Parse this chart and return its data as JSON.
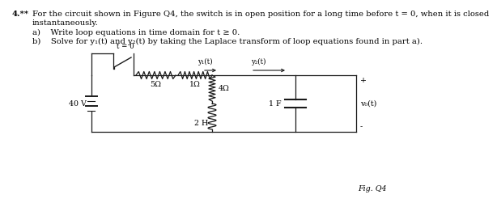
{
  "title_num": "4.**",
  "title_text": "For the circuit shown in Figure Q4, the switch is in open position for a long time before t = 0, when it is closed",
  "title_text2": "instantaneously.",
  "item_a": "a)    Write loop equations in time domain for t ≥ 0.",
  "item_b": "b)    Solve for y₁(t) and y₂(t) by taking the Laplace transform of loop equations found in part a).",
  "fig_label": "Fig. Q4",
  "voltage_source": "40 V",
  "switch_label": "t = 0",
  "r1_label": "5Ω",
  "r2_label": "1Ω",
  "r3_label": "4Ω",
  "l_label": "2 H",
  "c_label": "1 F",
  "v0_label": "v₀(t)",
  "y1_label": "y₁(t)",
  "y2_label": "y₂(t)",
  "plus_label": "+",
  "minus_label": "-",
  "bg_color": "#ffffff",
  "line_color": "#1a1a1a",
  "font_size_text": 7.2,
  "font_size_circuit": 6.8,
  "font_size_small": 6.2
}
